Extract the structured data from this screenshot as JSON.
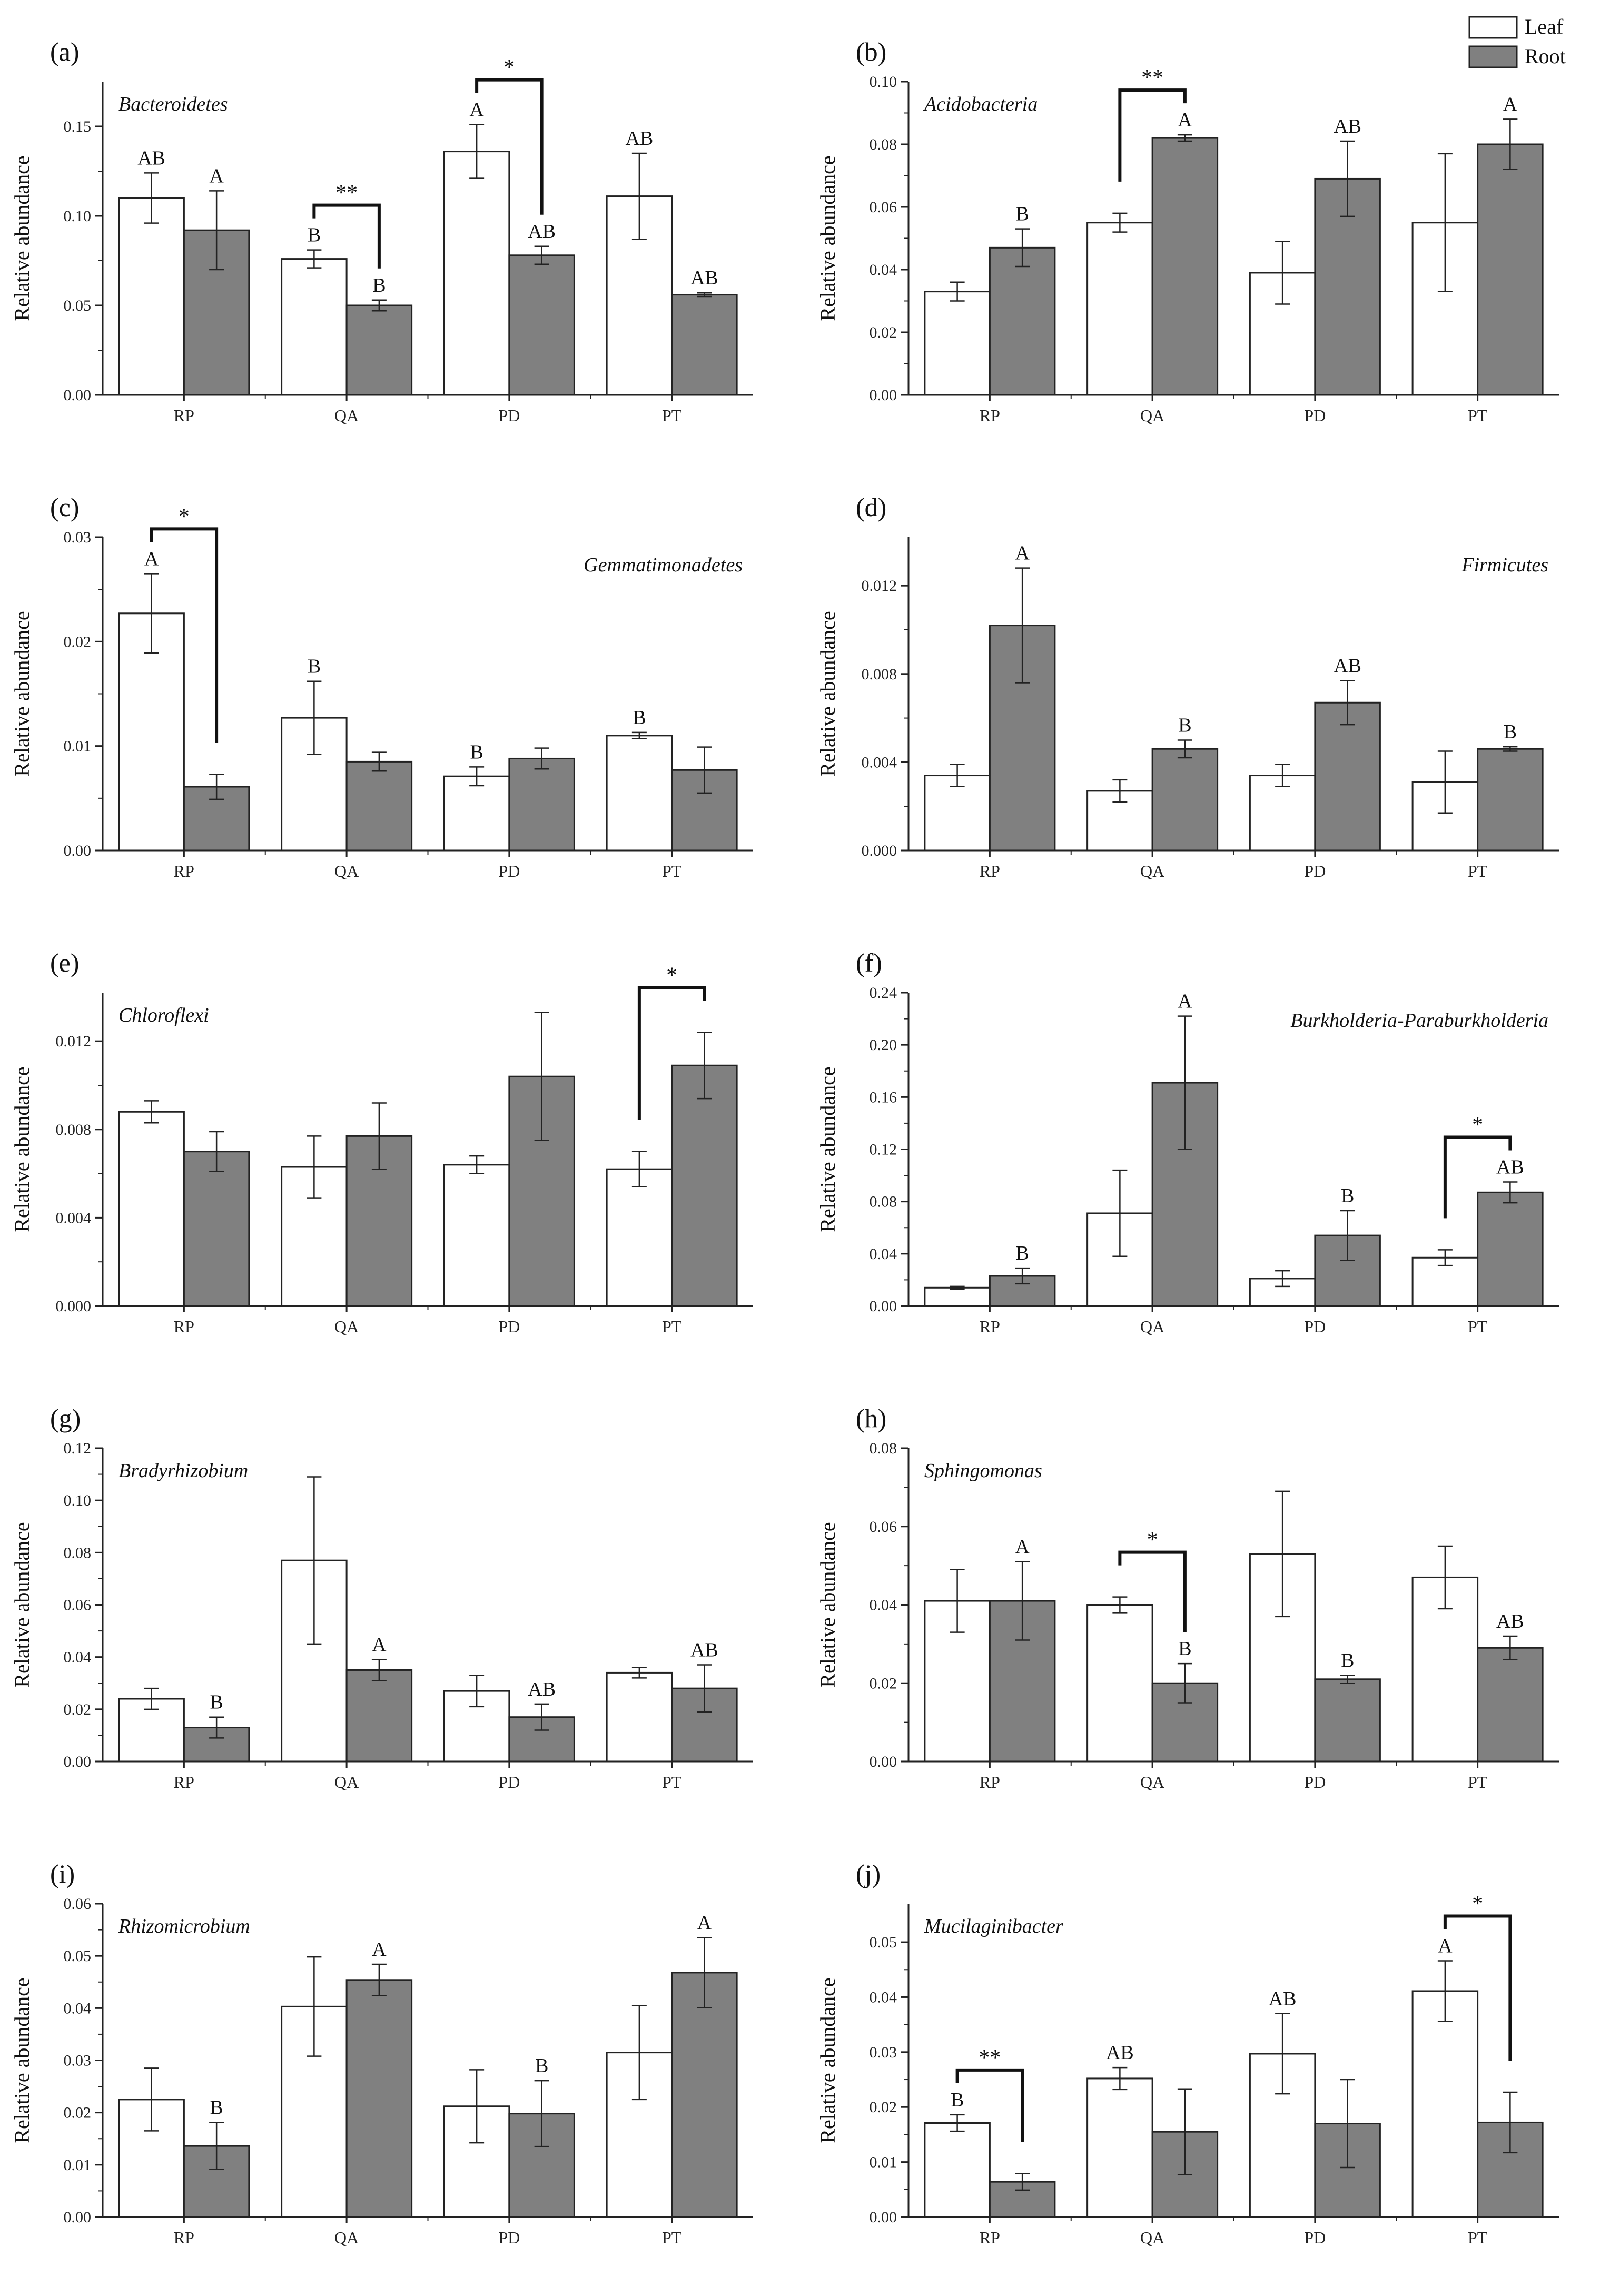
{
  "legend": {
    "items": [
      {
        "label": "Leaf",
        "color": "#ffffff"
      },
      {
        "label": "Root",
        "color": "#808080"
      }
    ]
  },
  "chart_data": [
    {
      "panel": "(a)",
      "type": "bar",
      "title": "Bacteroidetes",
      "title_position": "top-left",
      "ylabel": "Relative abundance",
      "categories": [
        "RP",
        "QA",
        "PD",
        "PT"
      ],
      "yticks": [
        "0.00",
        "0.05",
        "0.10",
        "0.15"
      ],
      "ylim": [
        0,
        0.175
      ],
      "series": [
        {
          "name": "Leaf",
          "values": [
            0.11,
            0.076,
            0.136,
            0.111
          ],
          "errors": [
            0.014,
            0.005,
            0.015,
            0.024
          ],
          "letters": [
            "AB",
            "B",
            "A",
            "AB"
          ]
        },
        {
          "name": "Root",
          "values": [
            0.092,
            0.05,
            0.078,
            0.056
          ],
          "errors": [
            0.022,
            0.003,
            0.005,
            0.001
          ],
          "letters": [
            "A",
            "B",
            "AB",
            "AB"
          ]
        }
      ],
      "significance": [
        {
          "category": 1,
          "label": "**"
        },
        {
          "category": 2,
          "label": "*"
        }
      ]
    },
    {
      "panel": "(b)",
      "type": "bar",
      "title": "Acidobacteria",
      "title_position": "top-left",
      "ylabel": "Relative abundance",
      "categories": [
        "RP",
        "QA",
        "PD",
        "PT"
      ],
      "yticks": [
        "0.00",
        "0.02",
        "0.04",
        "0.06",
        "0.08",
        "0.10"
      ],
      "ylim": [
        0,
        0.1
      ],
      "series": [
        {
          "name": "Leaf",
          "values": [
            0.033,
            0.055,
            0.039,
            0.055
          ],
          "errors": [
            0.003,
            0.003,
            0.01,
            0.022
          ],
          "letters": [
            "",
            "",
            "",
            ""
          ]
        },
        {
          "name": "Root",
          "values": [
            0.047,
            0.082,
            0.069,
            0.08
          ],
          "errors": [
            0.006,
            0.001,
            0.012,
            0.008
          ],
          "letters": [
            "B",
            "A",
            "AB",
            "A"
          ]
        }
      ],
      "significance": [
        {
          "category": 1,
          "label": "**"
        }
      ]
    },
    {
      "panel": "(c)",
      "type": "bar",
      "title": "Gemmatimonadetes",
      "title_position": "top-right",
      "ylabel": "Relative abundance",
      "categories": [
        "RP",
        "QA",
        "PD",
        "PT"
      ],
      "yticks": [
        "0.00",
        "0.01",
        "0.02",
        "0.03"
      ],
      "ylim": [
        0,
        0.03
      ],
      "series": [
        {
          "name": "Leaf",
          "values": [
            0.0227,
            0.0127,
            0.0071,
            0.011
          ],
          "errors": [
            0.0038,
            0.0035,
            0.0009,
            0.0003
          ],
          "letters": [
            "A",
            "B",
            "B",
            "B"
          ]
        },
        {
          "name": "Root",
          "values": [
            0.0061,
            0.0085,
            0.0088,
            0.0077
          ],
          "errors": [
            0.0012,
            0.0009,
            0.001,
            0.0022
          ],
          "letters": [
            "",
            "",
            "",
            ""
          ]
        }
      ],
      "significance": [
        {
          "category": 0,
          "label": "*"
        }
      ]
    },
    {
      "panel": "(d)",
      "type": "bar",
      "title": "Firmicutes",
      "title_position": "top-right",
      "ylabel": "Relative abundance",
      "categories": [
        "RP",
        "QA",
        "PD",
        "PT"
      ],
      "yticks": [
        "0.000",
        "0.004",
        "0.008",
        "0.012"
      ],
      "ylim": [
        0,
        0.0142
      ],
      "series": [
        {
          "name": "Leaf",
          "values": [
            0.0034,
            0.0027,
            0.0034,
            0.0031
          ],
          "errors": [
            0.0005,
            0.0005,
            0.0005,
            0.0014
          ],
          "letters": [
            "",
            "",
            "",
            ""
          ]
        },
        {
          "name": "Root",
          "values": [
            0.0102,
            0.0046,
            0.0067,
            0.0046
          ],
          "errors": [
            0.0026,
            0.0004,
            0.001,
            0.0001
          ],
          "letters": [
            "A",
            "B",
            "AB",
            "B"
          ]
        }
      ],
      "significance": []
    },
    {
      "panel": "(e)",
      "type": "bar",
      "title": "Chloroflexi",
      "title_position": "top-left",
      "ylabel": "Relative abundance",
      "categories": [
        "RP",
        "QA",
        "PD",
        "PT"
      ],
      "yticks": [
        "0.000",
        "0.004",
        "0.008",
        "0.012"
      ],
      "ylim": [
        0,
        0.0142
      ],
      "series": [
        {
          "name": "Leaf",
          "values": [
            0.0088,
            0.0063,
            0.0064,
            0.0062
          ],
          "errors": [
            0.0005,
            0.0014,
            0.0004,
            0.0008
          ],
          "letters": [
            "",
            "",
            "",
            ""
          ]
        },
        {
          "name": "Root",
          "values": [
            0.007,
            0.0077,
            0.0104,
            0.0109
          ],
          "errors": [
            0.0009,
            0.0015,
            0.0029,
            0.0015
          ],
          "letters": [
            "",
            "",
            "",
            ""
          ]
        }
      ],
      "significance": [
        {
          "category": 3,
          "label": "*"
        }
      ]
    },
    {
      "panel": "(f)",
      "type": "bar",
      "title": "Burkholderia-Paraburkholderia",
      "title_position": "top-right",
      "ylabel": "Relative abundance",
      "categories": [
        "RP",
        "QA",
        "PD",
        "PT"
      ],
      "yticks": [
        "0.00",
        "0.04",
        "0.08",
        "0.12",
        "0.16",
        "0.20",
        "0.24"
      ],
      "ylim": [
        0,
        0.24
      ],
      "series": [
        {
          "name": "Leaf",
          "values": [
            0.014,
            0.071,
            0.021,
            0.037
          ],
          "errors": [
            0.001,
            0.033,
            0.006,
            0.006
          ],
          "letters": [
            "",
            "",
            "",
            ""
          ]
        },
        {
          "name": "Root",
          "values": [
            0.023,
            0.171,
            0.054,
            0.087
          ],
          "errors": [
            0.006,
            0.051,
            0.019,
            0.008
          ],
          "letters": [
            "B",
            "A",
            "B",
            "AB"
          ]
        }
      ],
      "significance": [
        {
          "category": 3,
          "label": "*"
        }
      ]
    },
    {
      "panel": "(g)",
      "type": "bar",
      "title": "Bradyrhizobium",
      "title_position": "top-left",
      "ylabel": "Relative abundance",
      "categories": [
        "RP",
        "QA",
        "PD",
        "PT"
      ],
      "yticks": [
        "0.00",
        "0.02",
        "0.04",
        "0.06",
        "0.08",
        "0.10",
        "0.12"
      ],
      "ylim": [
        0,
        0.12
      ],
      "series": [
        {
          "name": "Leaf",
          "values": [
            0.024,
            0.077,
            0.027,
            0.034
          ],
          "errors": [
            0.004,
            0.032,
            0.006,
            0.002
          ],
          "letters": [
            "",
            "",
            "",
            ""
          ]
        },
        {
          "name": "Root",
          "values": [
            0.013,
            0.035,
            0.017,
            0.028
          ],
          "errors": [
            0.004,
            0.004,
            0.005,
            0.009
          ],
          "letters": [
            "B",
            "A",
            "AB",
            "AB"
          ]
        }
      ],
      "significance": []
    },
    {
      "panel": "(h)",
      "type": "bar",
      "title": "Sphingomonas",
      "title_position": "top-left",
      "ylabel": "Relative abundance",
      "categories": [
        "RP",
        "QA",
        "PD",
        "PT"
      ],
      "yticks": [
        "0.00",
        "0.02",
        "0.04",
        "0.06",
        "0.08"
      ],
      "ylim": [
        0,
        0.08
      ],
      "series": [
        {
          "name": "Leaf",
          "values": [
            0.041,
            0.04,
            0.053,
            0.047
          ],
          "errors": [
            0.008,
            0.002,
            0.016,
            0.008
          ],
          "letters": [
            "",
            "",
            "",
            ""
          ]
        },
        {
          "name": "Root",
          "values": [
            0.041,
            0.02,
            0.021,
            0.029
          ],
          "errors": [
            0.01,
            0.005,
            0.001,
            0.003
          ],
          "letters": [
            "A",
            "B",
            "B",
            "AB"
          ]
        }
      ],
      "significance": [
        {
          "category": 1,
          "label": "*"
        }
      ]
    },
    {
      "panel": "(i)",
      "type": "bar",
      "title": "Rhizomicrobium",
      "title_position": "top-left",
      "ylabel": "Relative abundance",
      "categories": [
        "RP",
        "QA",
        "PD",
        "PT"
      ],
      "yticks": [
        "0.00",
        "0.01",
        "0.02",
        "0.03",
        "0.04",
        "0.05",
        "0.06"
      ],
      "ylim": [
        0,
        0.06
      ],
      "series": [
        {
          "name": "Leaf",
          "values": [
            0.0225,
            0.0403,
            0.0212,
            0.0315
          ],
          "errors": [
            0.006,
            0.0095,
            0.007,
            0.009
          ],
          "letters": [
            "",
            "",
            "",
            ""
          ]
        },
        {
          "name": "Root",
          "values": [
            0.0136,
            0.0454,
            0.0198,
            0.0468
          ],
          "errors": [
            0.0045,
            0.003,
            0.0063,
            0.0067
          ],
          "letters": [
            "B",
            "A",
            "B",
            "A"
          ]
        }
      ],
      "significance": []
    },
    {
      "panel": "(j)",
      "type": "bar",
      "title": "Mucilaginibacter",
      "title_position": "top-left",
      "ylabel": "Relative abundance",
      "categories": [
        "RP",
        "QA",
        "PD",
        "PT"
      ],
      "yticks": [
        "0.00",
        "0.01",
        "0.02",
        "0.03",
        "0.04",
        "0.05"
      ],
      "ylim": [
        0,
        0.057
      ],
      "series": [
        {
          "name": "Leaf",
          "values": [
            0.0171,
            0.0252,
            0.0297,
            0.0411
          ],
          "errors": [
            0.0015,
            0.002,
            0.0073,
            0.0055
          ],
          "letters": [
            "B",
            "AB",
            "AB",
            "A"
          ]
        },
        {
          "name": "Root",
          "values": [
            0.0064,
            0.0155,
            0.017,
            0.0172
          ],
          "errors": [
            0.0015,
            0.0078,
            0.008,
            0.0055
          ],
          "letters": [
            "",
            "",
            "",
            ""
          ]
        }
      ],
      "significance": [
        {
          "category": 0,
          "label": "**"
        },
        {
          "category": 3,
          "label": "*"
        }
      ]
    }
  ]
}
